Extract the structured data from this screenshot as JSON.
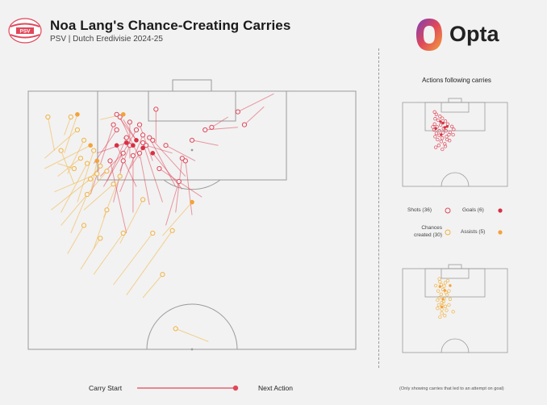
{
  "header": {
    "title": "Noa Lang's Chance-Creating Carries",
    "subtitle": "PSV | Dutch Eredivisie 2024-25",
    "crest_text": "PSV",
    "brand": "Opta"
  },
  "side": {
    "actions_title": "Actions following carries",
    "key": {
      "shots": "Shots (36)",
      "goals": "Goals (6)",
      "chances": "Chances created (30)",
      "assists": "Assists (5)"
    },
    "footnote": "(Only showing carries that led to an attempt on goal)"
  },
  "legend": {
    "carry_start": "Carry Start",
    "next_action": "Next Action"
  },
  "colors": {
    "shot": "#e0485a",
    "chance": "#f3b340",
    "background": "#f2f2f2",
    "pitch_line": "#9a9a9a"
  },
  "chart_data": {
    "type": "scatter",
    "title": "Noa Lang's Chance-Creating Carries",
    "subtitle": "PSV | Dutch Eredivisie 2024-25",
    "units": "pitch coordinates (x across 0-100, y from attacking goal line 0-100)",
    "carries": [
      {
        "kind": "shot",
        "goal": false,
        "start": [
          75,
          1
        ],
        "end": [
          64,
          8
        ]
      },
      {
        "kind": "shot",
        "goal": false,
        "start": [
          72,
          6
        ],
        "end": [
          66,
          13
        ]
      },
      {
        "kind": "shot",
        "goal": false,
        "start": [
          61,
          10
        ],
        "end": [
          56,
          14
        ]
      },
      {
        "kind": "shot",
        "goal": false,
        "start": [
          64,
          14
        ],
        "end": [
          54,
          15
        ]
      },
      {
        "kind": "shot",
        "goal": false,
        "start": [
          58,
          21
        ],
        "end": [
          50,
          19
        ]
      },
      {
        "kind": "shot",
        "goal": false,
        "start": [
          39,
          20
        ],
        "end": [
          39,
          7
        ]
      },
      {
        "kind": "shot",
        "goal": false,
        "start": [
          33,
          19
        ],
        "end": [
          27,
          9
        ]
      },
      {
        "kind": "shot",
        "goal": false,
        "start": [
          34,
          26
        ],
        "end": [
          28,
          10
        ]
      },
      {
        "kind": "shot",
        "goal": false,
        "start": [
          31,
          26
        ],
        "end": [
          31,
          12
        ]
      },
      {
        "kind": "shot",
        "goal": false,
        "start": [
          38,
          27
        ],
        "end": [
          34,
          13
        ]
      },
      {
        "kind": "shot",
        "goal": false,
        "start": [
          20,
          28
        ],
        "end": [
          27,
          15
        ]
      },
      {
        "kind": "shot",
        "goal": false,
        "start": [
          23,
          37
        ],
        "end": [
          33,
          15
        ]
      },
      {
        "kind": "shot",
        "goal": false,
        "start": [
          45,
          37
        ],
        "end": [
          37,
          18
        ]
      },
      {
        "kind": "shot",
        "goal": false,
        "start": [
          28,
          39
        ],
        "end": [
          35,
          17
        ]
      },
      {
        "kind": "shot",
        "goal": false,
        "start": [
          19,
          40
        ],
        "end": [
          26,
          13
        ]
      },
      {
        "kind": "shot",
        "goal": false,
        "start": [
          48,
          33
        ],
        "end": [
          38,
          19
        ]
      },
      {
        "kind": "shot",
        "goal": false,
        "start": [
          45,
          47
        ],
        "end": [
          47,
          26
        ]
      },
      {
        "kind": "shot",
        "goal": false,
        "start": [
          41,
          43
        ],
        "end": [
          35,
          20
        ]
      },
      {
        "kind": "shot",
        "goal": false,
        "start": [
          28,
          31
        ],
        "end": [
          31,
          21
        ]
      },
      {
        "kind": "shot",
        "goal": false,
        "start": [
          24,
          35
        ],
        "end": [
          30,
          18
        ]
      },
      {
        "kind": "shot",
        "goal": false,
        "start": [
          51,
          27
        ],
        "end": [
          42,
          21
        ]
      },
      {
        "kind": "shot",
        "goal": false,
        "start": [
          44,
          24
        ],
        "end": [
          36,
          21
        ]
      },
      {
        "kind": "shot",
        "goal": false,
        "start": [
          22,
          33
        ],
        "end": [
          29,
          24
        ]
      },
      {
        "kind": "shot",
        "goal": false,
        "start": [
          50,
          48
        ],
        "end": [
          48,
          27
        ]
      },
      {
        "kind": "shot",
        "goal": false,
        "start": [
          37,
          44
        ],
        "end": [
          34,
          24
        ]
      },
      {
        "kind": "shot",
        "goal": false,
        "start": [
          42,
          52
        ],
        "end": [
          46,
          35
        ]
      },
      {
        "kind": "shot",
        "goal": false,
        "start": [
          26,
          43
        ],
        "end": [
          29,
          27
        ]
      },
      {
        "kind": "shot",
        "goal": false,
        "start": [
          32,
          47
        ],
        "end": [
          32,
          25
        ]
      },
      {
        "kind": "shot",
        "goal": false,
        "start": [
          30,
          55
        ],
        "end": [
          25,
          27
        ]
      },
      {
        "kind": "shot",
        "goal": false,
        "start": [
          53,
          41
        ],
        "end": [
          40,
          30
        ]
      },
      {
        "kind": "shot",
        "goal": true,
        "start": [
          21,
          24
        ],
        "end": [
          30,
          20
        ]
      },
      {
        "kind": "shot",
        "goal": true,
        "start": [
          29,
          18
        ],
        "end": [
          32,
          21
        ]
      },
      {
        "kind": "shot",
        "goal": true,
        "start": [
          31,
          30
        ],
        "end": [
          35,
          22
        ]
      },
      {
        "kind": "shot",
        "goal": true,
        "start": [
          29,
          11
        ],
        "end": [
          33,
          19
        ]
      },
      {
        "kind": "shot",
        "goal": true,
        "start": [
          47,
          38
        ],
        "end": [
          38,
          24
        ]
      },
      {
        "kind": "shot",
        "goal": true,
        "start": [
          33,
          37
        ],
        "end": [
          27,
          21
        ]
      },
      {
        "kind": "chance",
        "assist": false,
        "start": [
          11,
          17
        ],
        "end": [
          13,
          10
        ]
      },
      {
        "kind": "chance",
        "assist": false,
        "start": [
          8,
          23
        ],
        "end": [
          6,
          10
        ]
      },
      {
        "kind": "chance",
        "assist": false,
        "start": [
          5,
          26
        ],
        "end": [
          15,
          15
        ]
      },
      {
        "kind": "chance",
        "assist": false,
        "start": [
          12,
          32
        ],
        "end": [
          17,
          19
        ]
      },
      {
        "kind": "chance",
        "assist": false,
        "start": [
          14,
          36
        ],
        "end": [
          10,
          23
        ]
      },
      {
        "kind": "chance",
        "assist": false,
        "start": [
          9,
          33
        ],
        "end": [
          16,
          26
        ]
      },
      {
        "kind": "chance",
        "assist": false,
        "start": [
          18,
          35
        ],
        "end": [
          22,
          29
        ]
      },
      {
        "kind": "chance",
        "assist": false,
        "start": [
          8,
          39
        ],
        "end": [
          21,
          32
        ]
      },
      {
        "kind": "chance",
        "assist": false,
        "start": [
          7,
          46
        ],
        "end": [
          19,
          34
        ]
      },
      {
        "kind": "chance",
        "assist": false,
        "start": [
          10,
          52
        ],
        "end": [
          24,
          31
        ]
      },
      {
        "kind": "chance",
        "assist": false,
        "start": [
          17,
          46
        ],
        "end": [
          26,
          36
        ]
      },
      {
        "kind": "chance",
        "assist": false,
        "start": [
          13,
          55
        ],
        "end": [
          18,
          40
        ]
      },
      {
        "kind": "chance",
        "assist": false,
        "start": [
          20,
          61
        ],
        "end": [
          24,
          46
        ]
      },
      {
        "kind": "chance",
        "assist": false,
        "start": [
          12,
          63
        ],
        "end": [
          17,
          52
        ]
      },
      {
        "kind": "chance",
        "assist": false,
        "start": [
          28,
          59
        ],
        "end": [
          35,
          42
        ]
      },
      {
        "kind": "chance",
        "assist": false,
        "start": [
          20,
          71
        ],
        "end": [
          29,
          55
        ]
      },
      {
        "kind": "chance",
        "assist": false,
        "start": [
          26,
          75
        ],
        "end": [
          38,
          55
        ]
      },
      {
        "kind": "chance",
        "assist": false,
        "start": [
          30,
          79
        ],
        "end": [
          44,
          54
        ]
      },
      {
        "kind": "chance",
        "assist": false,
        "start": [
          16,
          69
        ],
        "end": [
          22,
          57
        ]
      },
      {
        "kind": "chance",
        "assist": false,
        "start": [
          15,
          43
        ],
        "end": [
          20,
          23
        ]
      },
      {
        "kind": "chance",
        "assist": false,
        "start": [
          23,
          49
        ],
        "end": [
          28,
          33
        ]
      },
      {
        "kind": "chance",
        "assist": false,
        "start": [
          10,
          47
        ],
        "end": [
          18,
          28
        ]
      },
      {
        "kind": "chance",
        "assist": false,
        "start": [
          9,
          28
        ],
        "end": [
          14,
          30
        ]
      },
      {
        "kind": "chance",
        "assist": false,
        "start": [
          55,
          97
        ],
        "end": [
          45,
          92
        ]
      },
      {
        "kind": "chance",
        "assist": false,
        "start": [
          35,
          80
        ],
        "end": [
          41,
          71
        ]
      },
      {
        "kind": "chance",
        "assist": true,
        "start": [
          11,
          24
        ],
        "end": [
          15,
          9
        ]
      },
      {
        "kind": "chance",
        "assist": true,
        "start": [
          22,
          11
        ],
        "end": [
          29,
          9
        ]
      },
      {
        "kind": "chance",
        "assist": true,
        "start": [
          5,
          30
        ],
        "end": [
          19,
          21
        ]
      },
      {
        "kind": "chance",
        "assist": true,
        "start": [
          19,
          40
        ],
        "end": [
          21,
          27
        ]
      },
      {
        "kind": "chance",
        "assist": true,
        "start": [
          41,
          56
        ],
        "end": [
          50,
          43
        ]
      }
    ],
    "side_shot_ends": [
      [
        9,
        13
      ],
      [
        12,
        18
      ],
      [
        18,
        22
      ],
      [
        22,
        26
      ],
      [
        15,
        30
      ],
      [
        10,
        27
      ],
      [
        27,
        32
      ],
      [
        31,
        38
      ],
      [
        9,
        38
      ],
      [
        13,
        44
      ],
      [
        19,
        40
      ],
      [
        24,
        47
      ],
      [
        8,
        50
      ],
      [
        17,
        52
      ],
      [
        28,
        52
      ],
      [
        33,
        60
      ],
      [
        40,
        60
      ],
      [
        22,
        67
      ],
      [
        30,
        70
      ],
      [
        10,
        64
      ],
      [
        14,
        70
      ],
      [
        20,
        74
      ],
      [
        26,
        79
      ],
      [
        34,
        72
      ],
      [
        41,
        49
      ],
      [
        12,
        57
      ],
      [
        17,
        61
      ],
      [
        23,
        56
      ],
      [
        29,
        64
      ],
      [
        35,
        55
      ],
      [
        38,
        43
      ],
      [
        6,
        44
      ],
      [
        16,
        82
      ],
      [
        22,
        90
      ],
      [
        27,
        84
      ],
      [
        11,
        86
      ]
    ],
    "side_goal_ends": [
      [
        19,
        33
      ],
      [
        23,
        36
      ],
      [
        11,
        47
      ],
      [
        26,
        45
      ],
      [
        20,
        60
      ],
      [
        30,
        43
      ]
    ],
    "side_chance_ends": [
      [
        17,
        16
      ],
      [
        18,
        22
      ],
      [
        20,
        28
      ],
      [
        25,
        31
      ],
      [
        23,
        38
      ],
      [
        20,
        48
      ],
      [
        28,
        44
      ],
      [
        17,
        55
      ],
      [
        25,
        57
      ],
      [
        24,
        63
      ],
      [
        14,
        60
      ],
      [
        16,
        70
      ],
      [
        22,
        72
      ],
      [
        27,
        73
      ],
      [
        21,
        79
      ],
      [
        29,
        81
      ],
      [
        21,
        87
      ],
      [
        26,
        92
      ],
      [
        18,
        95
      ],
      [
        14,
        77
      ],
      [
        30,
        49
      ],
      [
        33,
        41
      ],
      [
        35,
        58
      ],
      [
        27,
        24
      ],
      [
        31,
        20
      ],
      [
        11,
        30
      ],
      [
        15,
        41
      ],
      [
        33,
        70
      ],
      [
        40,
        84
      ],
      [
        21,
        65
      ]
    ],
    "side_assist_ends": [
      [
        18,
        32
      ],
      [
        26,
        40
      ],
      [
        23,
        58
      ],
      [
        35,
        30
      ],
      [
        21,
        74
      ]
    ]
  }
}
